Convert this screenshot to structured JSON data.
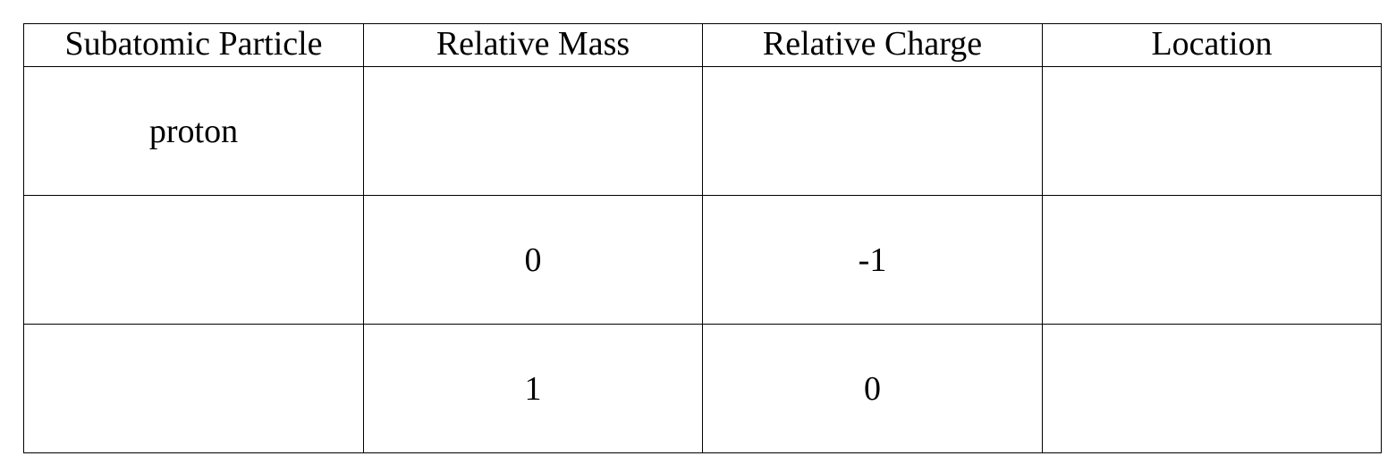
{
  "table": {
    "headers": [
      "Subatomic Particle",
      "Relative Mass",
      "Relative Charge",
      "Location"
    ],
    "rows": [
      [
        "proton",
        "",
        "",
        ""
      ],
      [
        "",
        "0",
        "-1",
        ""
      ],
      [
        "",
        "1",
        "0",
        ""
      ]
    ]
  }
}
